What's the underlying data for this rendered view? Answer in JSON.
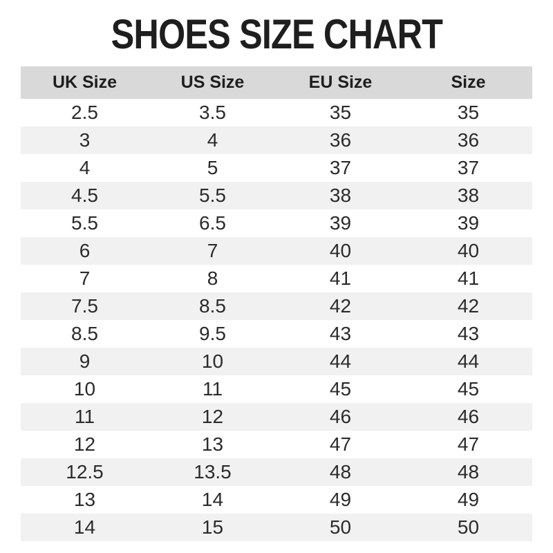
{
  "title": "SHOES SIZE CHART",
  "chart_data": {
    "type": "table",
    "title": "SHOES SIZE CHART",
    "columns": [
      "UK Size",
      "US Size",
      "EU Size",
      "Size"
    ],
    "rows": [
      [
        "2.5",
        "3.5",
        "35",
        "35"
      ],
      [
        "3",
        "4",
        "36",
        "36"
      ],
      [
        "4",
        "5",
        "37",
        "37"
      ],
      [
        "4.5",
        "5.5",
        "38",
        "38"
      ],
      [
        "5.5",
        "6.5",
        "39",
        "39"
      ],
      [
        "6",
        "7",
        "40",
        "40"
      ],
      [
        "7",
        "8",
        "41",
        "41"
      ],
      [
        "7.5",
        "8.5",
        "42",
        "42"
      ],
      [
        "8.5",
        "9.5",
        "43",
        "43"
      ],
      [
        "9",
        "10",
        "44",
        "44"
      ],
      [
        "10",
        "11",
        "45",
        "45"
      ],
      [
        "11",
        "12",
        "46",
        "46"
      ],
      [
        "12",
        "13",
        "47",
        "47"
      ],
      [
        "12.5",
        "13.5",
        "48",
        "48"
      ],
      [
        "13",
        "14",
        "49",
        "49"
      ],
      [
        "14",
        "15",
        "50",
        "50"
      ]
    ],
    "layout": {
      "striped": true,
      "first_data_row_bg": "white",
      "header_position": "top",
      "text_align": "center"
    }
  },
  "colors": {
    "page_bg": "#ffffff",
    "title_text": "#1e1e1e",
    "header_bg": "#d9d9d9",
    "header_text": "#1e1e1e",
    "stripe_bg": "#f1f1f1",
    "cell_text": "#2b2b2b"
  }
}
